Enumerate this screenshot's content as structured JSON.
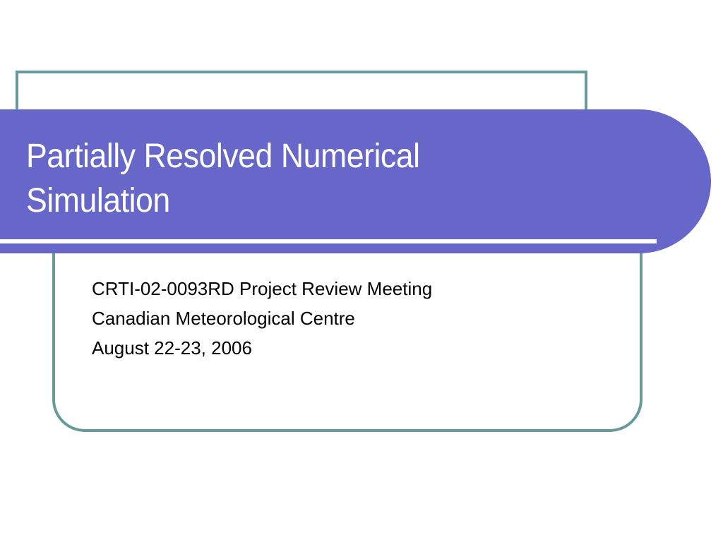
{
  "slide": {
    "title_lines": [
      "Partially Resolved Numerical",
      "Simulation"
    ],
    "subtitle_lines": [
      "CRTI-02-0093RD Project Review Meeting",
      "Canadian Meteorological Centre",
      "August 22-23, 2006"
    ]
  },
  "colors": {
    "band": "#6766c9",
    "frame": "#679a9a",
    "title_text": "#ffffff",
    "body_text": "#000000"
  }
}
